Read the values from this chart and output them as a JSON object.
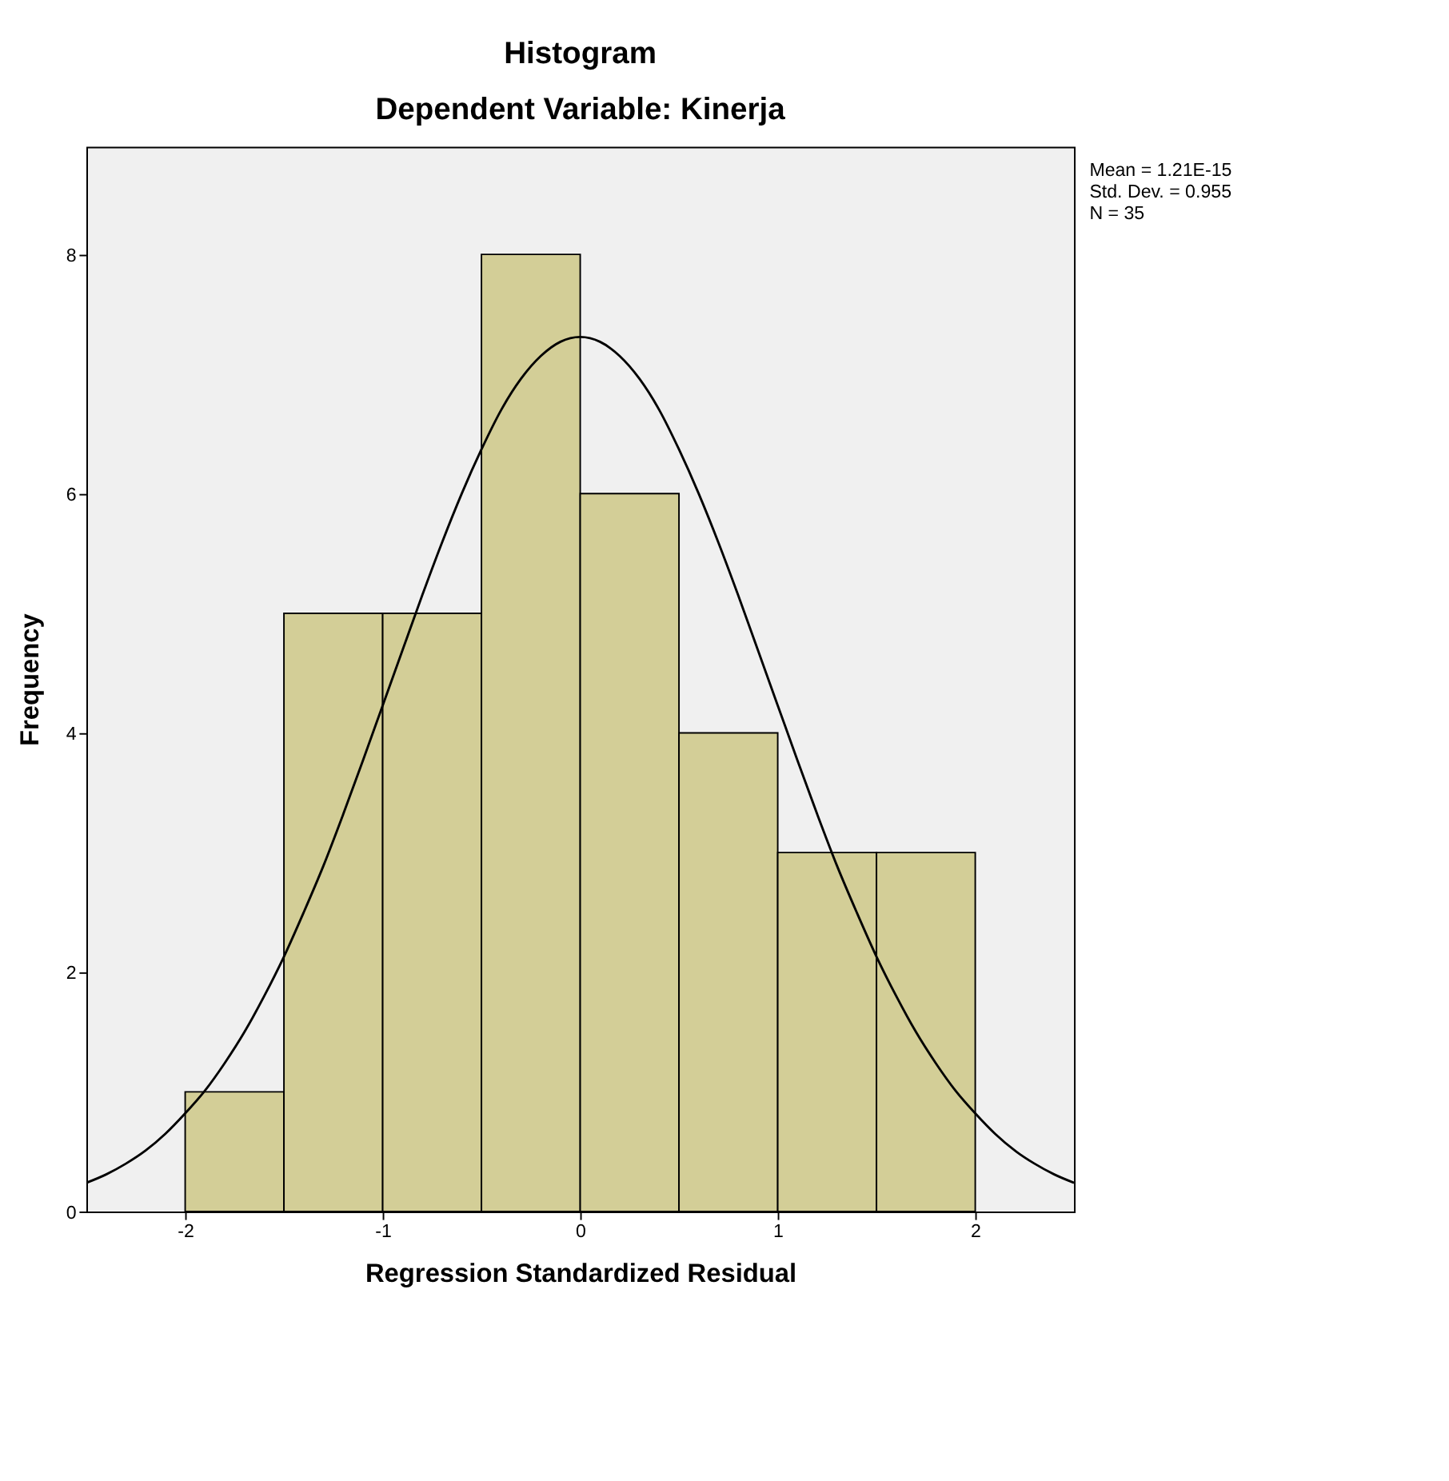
{
  "chart_data": {
    "type": "histogram",
    "title": "Histogram",
    "subtitle": "Dependent Variable: Kinerja",
    "xlabel": "Regression Standardized Residual",
    "ylabel": "Frequency",
    "xlim": [
      -2.5,
      2.5
    ],
    "xticks": [
      -2,
      -1,
      0,
      1,
      2
    ],
    "ylim": [
      0,
      8.9
    ],
    "yticks": [
      0,
      2,
      4,
      6,
      8
    ],
    "grid": false,
    "annotations": [
      "Mean = 1.21E-15",
      "Std. Dev. = 0.955",
      "N = 35"
    ],
    "series": [
      {
        "color": "#d3ce97",
        "bins": [
          -2,
          -1.5,
          -1,
          -0.5,
          0,
          0.5,
          1,
          1.5,
          2
        ],
        "values": [
          1,
          5,
          5,
          8,
          6,
          4,
          3,
          3
        ]
      },
      {
        "type": "line",
        "color": "#000000",
        "x": [
          -2.5,
          -2.4,
          -2.3,
          -2.2,
          -2.1,
          -2.0,
          -1.9,
          -1.8,
          -1.7,
          -1.6,
          -1.5,
          -1.4,
          -1.3,
          -1.2,
          -1.1,
          -1.0,
          -0.9,
          -0.8,
          -0.7,
          -0.6,
          -0.5,
          -0.4,
          -0.3,
          -0.2,
          -0.1,
          0,
          0.1,
          0.2,
          0.3,
          0.4,
          0.5,
          0.6,
          0.7,
          0.8,
          0.9,
          1.0,
          1.1,
          1.2,
          1.3,
          1.4,
          1.5,
          1.6,
          1.7,
          1.8,
          1.9,
          2.0,
          2.1,
          2.2,
          2.3,
          2.4,
          2.5
        ],
        "values": [
          0.24,
          0.31,
          0.4,
          0.51,
          0.65,
          0.82,
          1.01,
          1.24,
          1.5,
          1.8,
          2.13,
          2.5,
          2.89,
          3.32,
          3.77,
          4.23,
          4.69,
          5.15,
          5.59,
          6.0,
          6.37,
          6.7,
          6.96,
          7.15,
          7.27,
          7.31,
          7.27,
          7.15,
          6.96,
          6.7,
          6.37,
          6.0,
          5.59,
          5.15,
          4.69,
          4.23,
          3.77,
          3.32,
          2.89,
          2.5,
          2.13,
          1.8,
          1.5,
          1.24,
          1.01,
          0.82,
          0.65,
          0.51,
          0.4,
          0.31,
          0.24
        ]
      }
    ]
  }
}
